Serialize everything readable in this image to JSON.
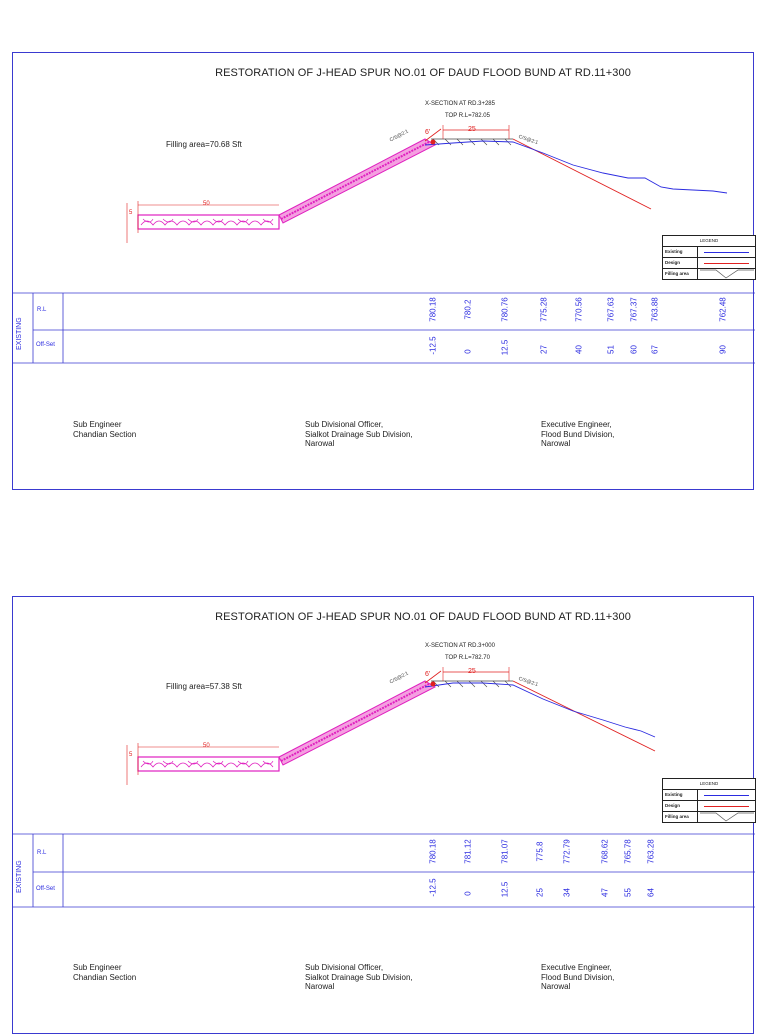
{
  "sheets": [
    {
      "title": "RESTORATION OF J-HEAD SPUR NO.01 OF DAUD FLOOD BUND AT RD.11+300",
      "section_label": "X-SECTION AT RD.3+285",
      "top_rl": "TOP R.L=782.05",
      "filling_area": "Filling area=70.68 Sft",
      "dim_toe": "50",
      "dim_height": "5",
      "dim_crest": "25",
      "dim_slope": "6'",
      "slope_label_left": "C/S@2:1",
      "slope_label_right": "C/S@2:1",
      "row_group_label": "EXISTING",
      "row_rl_label": "R.L",
      "row_offset_label": "Off-Set",
      "rl_values": [
        "780.18",
        "780.2",
        "780.76",
        "775.28",
        "770.56",
        "767.63",
        "767.37",
        "763.88",
        "762.48"
      ],
      "offset_values": [
        "-12.5",
        "0",
        "12.5",
        "27",
        "40",
        "51",
        "60",
        "67",
        "90"
      ]
    },
    {
      "title": "RESTORATION OF J-HEAD SPUR NO.01 OF DAUD FLOOD BUND AT RD.11+300",
      "section_label": "X-SECTION AT RD.3+000",
      "top_rl": "TOP R.L=782.70",
      "filling_area": "Filling area=57.38 Sft",
      "dim_toe": "50",
      "dim_height": "5",
      "dim_crest": "25",
      "dim_slope": "6'",
      "slope_label_left": "C/S@2:1",
      "slope_label_right": "C/S@2:1",
      "row_group_label": "EXISTING",
      "row_rl_label": "R.L",
      "row_offset_label": "Off-Set",
      "rl_values": [
        "780.18",
        "781.12",
        "781.07",
        "775.8",
        "772.79",
        "768.62",
        "765.78",
        "763.28"
      ],
      "offset_values": [
        "-12.5",
        "0",
        "12.5",
        "25",
        "34",
        "47",
        "55",
        "64"
      ]
    }
  ],
  "legend": {
    "title": "LEGEND",
    "existing": "Existing",
    "design": "Design",
    "filling": "Filling area",
    "existing_color": "#2b2be0",
    "design_color": "#e02020",
    "filling_color": "#555555"
  },
  "signatures": {
    "sub_engineer": [
      "Sub Engineer",
      "Chandian Section"
    ],
    "sdo": [
      "Sub Divisional Officer,",
      "Sialkot Drainage Sub Division,",
      "Narowal"
    ],
    "xen": [
      "Executive Engineer,",
      "Flood Bund Division,",
      "Narowal"
    ]
  },
  "colors": {
    "frame": "#3a3ad0",
    "existing": "#2b2be0",
    "design": "#e02020",
    "fill": "#e020c0",
    "dim": "#e02020"
  }
}
